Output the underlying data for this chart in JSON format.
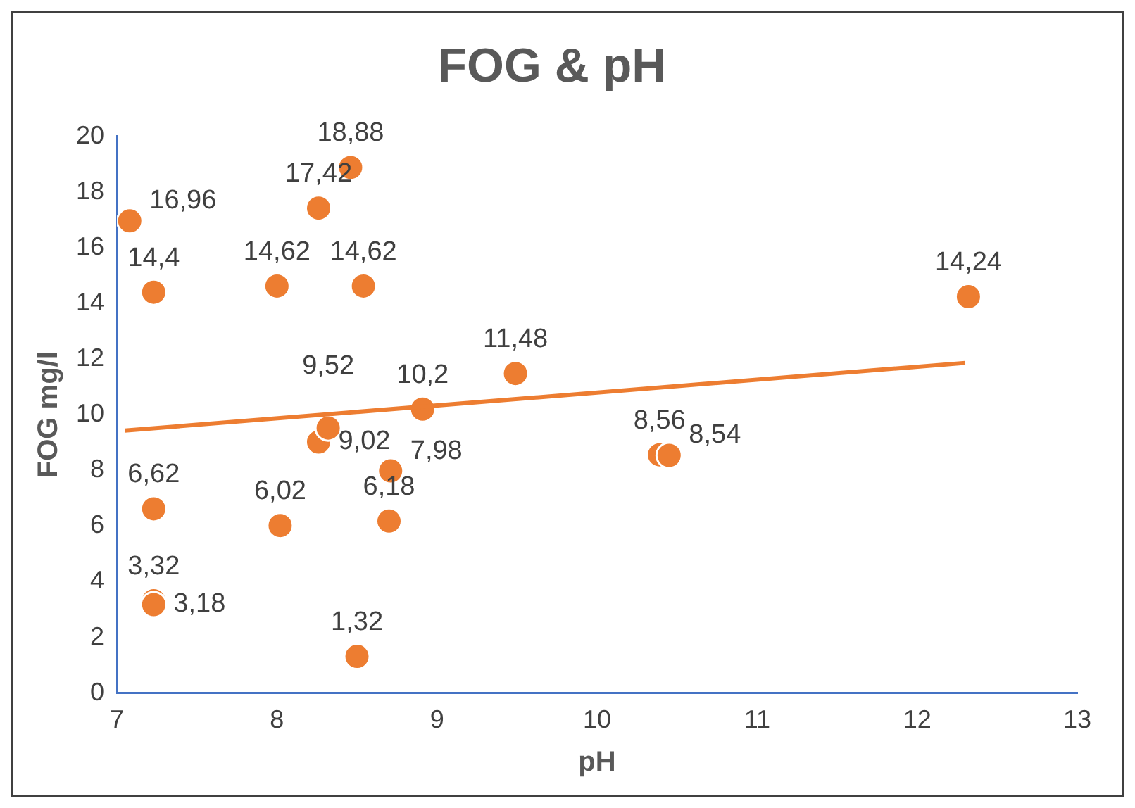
{
  "chart_data": {
    "type": "scatter",
    "title": "FOG & pH",
    "xlabel": "pH",
    "ylabel": "FOG mg/l",
    "xlim": [
      7,
      13
    ],
    "xticks": [
      7,
      8,
      9,
      10,
      11,
      12,
      13
    ],
    "ylim": [
      0,
      20
    ],
    "yticks": [
      0,
      2,
      4,
      6,
      8,
      10,
      12,
      14,
      16,
      18,
      20
    ],
    "grid": false,
    "legend": false,
    "marker": "circle",
    "series": [
      {
        "color": "#ed7d31",
        "x": [
          7.08,
          7.23,
          7.23,
          7.23,
          7.23,
          8.0,
          8.02,
          8.26,
          8.26,
          8.32,
          8.46,
          8.5,
          8.54,
          8.71,
          8.7,
          8.91,
          9.49,
          10.39,
          10.45,
          12.32
        ],
        "values": [
          16.96,
          14.4,
          6.62,
          3.32,
          3.18,
          14.62,
          6.02,
          17.42,
          9.02,
          9.52,
          18.88,
          1.32,
          14.62,
          7.98,
          6.18,
          10.2,
          11.48,
          8.56,
          8.54,
          14.24
        ],
        "value_labels": [
          "16,96",
          "14,4",
          "6,62",
          "3,32",
          "3,18",
          "14,62",
          "6,02",
          "17,42",
          "9,02",
          "9,52",
          "18,88",
          "1,32",
          "14,62",
          "7,98",
          "6,18",
          "10,2",
          "11,48",
          "8,56",
          "8,54",
          "14,24"
        ]
      },
      {
        "type": "line",
        "color": "#ed7d31",
        "line_style": "solid",
        "marker": "none",
        "x": [
          7.05,
          12.3
        ],
        "values": [
          9.43,
          11.86
        ]
      }
    ]
  }
}
